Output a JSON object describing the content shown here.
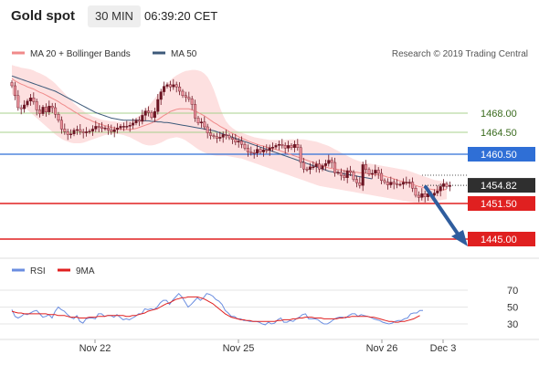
{
  "header": {
    "title": "Gold spot",
    "timeframe": "30 MIN",
    "time": "06:39:20 CET"
  },
  "legend": {
    "ma20_label": "MA 20 + Bollinger Bands",
    "ma50_label": "MA 50",
    "credit": "Research © 2019 Trading Central"
  },
  "colors": {
    "candle_up": "#6b1422",
    "candle_down": "#e8909a",
    "ma20": "#f08a8a",
    "bollinger_fill": "#fde0e0",
    "ma50": "#3d5a7a",
    "green_level": "#a8d08d",
    "blue_level": "#2f6fd6",
    "red_level": "#e02020",
    "current_price": "#2f2f2f",
    "arrow": "#2f5d9e",
    "rsi": "#6a8de0",
    "rsi_ma": "#e02020"
  },
  "chart_data": [
    {
      "type": "candlestick",
      "title": "Gold spot",
      "ylim": [
        1440,
        1480
      ],
      "x_tick_labels": [
        "Nov 22",
        "Nov 25",
        "Nov 26",
        "Dec 3"
      ],
      "levels": [
        {
          "value": 1468.0,
          "label": "1468.00",
          "style": "green-line"
        },
        {
          "value": 1464.5,
          "label": "1464.50",
          "style": "green-line"
        },
        {
          "value": 1460.5,
          "label": "1460.50",
          "style": "blue-box"
        },
        {
          "value": 1454.82,
          "label": "1454.82",
          "style": "current-price"
        },
        {
          "value": 1451.5,
          "label": "1451.50",
          "style": "red-box"
        },
        {
          "value": 1445.0,
          "label": "1445.00",
          "style": "red-box"
        }
      ],
      "closes": [
        1473.0,
        1471.2,
        1469.0,
        1468.8,
        1469.5,
        1470.2,
        1470.8,
        1470.1,
        1468.6,
        1467.9,
        1469.1,
        1468.2,
        1469.3,
        1469.0,
        1467.8,
        1466.7,
        1465.1,
        1464.6,
        1464.1,
        1464.2,
        1464.9,
        1465.0,
        1464.6,
        1464.4,
        1464.6,
        1464.7,
        1465.1,
        1465.6,
        1465.5,
        1465.2,
        1465.3,
        1464.9,
        1464.6,
        1465.0,
        1465.3,
        1465.6,
        1465.6,
        1465.6,
        1465.8,
        1466.2,
        1466.7,
        1466.5,
        1467.6,
        1468.4,
        1468.1,
        1467.2,
        1468.3,
        1470.5,
        1471.9,
        1472.9,
        1473.2,
        1472.8,
        1473.2,
        1472.8,
        1472.0,
        1471.2,
        1470.9,
        1470.6,
        1469.6,
        1467.1,
        1466.2,
        1466.4,
        1465.5,
        1464.4,
        1463.9,
        1463.7,
        1463.4,
        1463.6,
        1464.1,
        1463.9,
        1463.5,
        1463.2,
        1462.7,
        1462.9,
        1462.3,
        1461.6,
        1460.9,
        1460.8,
        1460.7,
        1461.4,
        1460.9,
        1461.3,
        1461.2,
        1461.7,
        1461.8,
        1462.1,
        1462.3,
        1462.1,
        1461.6,
        1462.1,
        1461.7,
        1462.3,
        1461.7,
        1459.0,
        1457.8,
        1457.7,
        1458.2,
        1458.2,
        1458.7,
        1457.8,
        1458.4,
        1458.8,
        1459.4,
        1459.0,
        1457.1,
        1457.2,
        1456.6,
        1456.2,
        1457.5,
        1457.2,
        1455.9,
        1455.3,
        1454.8,
        1458.6,
        1457.7,
        1456.9,
        1457.0,
        1457.6,
        1457.0,
        1455.7,
        1455.4,
        1454.9,
        1455.4,
        1455.1,
        1455.0,
        1455.0,
        1455.4,
        1455.4,
        1455.4,
        1454.3,
        1453.0,
        1452.6,
        1453.3,
        1452.7,
        1453.3,
        1453.0,
        1453.4,
        1453.8,
        1454.6,
        1455.1,
        1454.6,
        1454.8
      ],
      "ma20": [
        1474.3,
        1473.9,
        1473.6,
        1473.3,
        1473.1,
        1472.8,
        1472.6,
        1472.4,
        1472.1,
        1471.8,
        1471.6,
        1471.3,
        1471.0,
        1470.7,
        1470.4,
        1470.1,
        1469.7,
        1469.4,
        1469.0,
        1468.7,
        1468.3,
        1468.0,
        1467.6,
        1467.3,
        1467.0,
        1466.8,
        1466.5,
        1466.3,
        1466.1,
        1465.9,
        1465.7,
        1465.6,
        1465.4,
        1465.3,
        1465.2,
        1465.1,
        1465.0,
        1465.0,
        1465.0,
        1465.1,
        1465.2,
        1465.4,
        1465.6,
        1465.8,
        1466.0,
        1466.2,
        1466.5,
        1466.8,
        1467.2,
        1467.6,
        1467.9,
        1468.3,
        1468.5,
        1468.7,
        1468.8,
        1468.8,
        1468.8,
        1468.8,
        1468.6,
        1468.4,
        1468.1,
        1467.8,
        1467.5,
        1467.1,
        1466.7,
        1466.3,
        1466.0,
        1465.6,
        1465.3,
        1465.0,
        1464.6,
        1464.3,
        1464.0,
        1463.7,
        1463.4,
        1463.2,
        1462.9,
        1462.7,
        1462.5,
        1462.3,
        1462.1,
        1462.0,
        1461.8,
        1461.6,
        1461.5,
        1461.4,
        1461.2,
        1461.0,
        1460.8,
        1460.6,
        1460.4,
        1460.2,
        1460.0,
        1459.8,
        1459.6,
        1459.4,
        1459.2,
        1459.0,
        1458.8,
        1458.6,
        1458.4,
        1458.2,
        1458.0,
        1457.9,
        1457.8,
        1457.7,
        1457.6,
        1457.5,
        1457.4,
        1457.3,
        1457.2,
        1457.2,
        1457.1,
        1457.1,
        1457.0,
        1456.9,
        1456.8,
        1456.8,
        1456.7,
        1456.6,
        1456.5,
        1456.3,
        1456.2,
        1456.0,
        1455.8,
        1455.6,
        1455.5,
        1455.3,
        1455.2,
        1455.0,
        1454.8,
        1454.6,
        1454.5,
        1454.3,
        1454.2,
        1454.1,
        1454.0,
        1454.0,
        1454.0,
        1454.0,
        1454.1
      ],
      "bollinger_upper": [
        1476.8,
        1476.6,
        1476.5,
        1476.3,
        1476.2,
        1476.1,
        1476.0,
        1475.8,
        1475.5,
        1475.3,
        1475.0,
        1474.7,
        1474.3,
        1473.9,
        1473.4,
        1472.8,
        1472.2,
        1471.6,
        1471.0,
        1470.4,
        1469.8,
        1469.3,
        1468.8,
        1468.4,
        1468.0,
        1467.7,
        1467.4,
        1467.2,
        1467.0,
        1466.8,
        1466.7,
        1466.6,
        1466.5,
        1466.5,
        1466.4,
        1466.4,
        1466.4,
        1466.5,
        1466.6,
        1466.8,
        1467.1,
        1467.5,
        1468.0,
        1468.6,
        1469.3,
        1470.0,
        1470.7,
        1471.4,
        1472.1,
        1472.8,
        1473.4,
        1474.0,
        1474.5,
        1474.9,
        1475.2,
        1475.5,
        1475.7,
        1475.8,
        1475.9,
        1475.9,
        1475.8,
        1475.6,
        1475.2,
        1474.6,
        1473.6,
        1472.3,
        1470.7,
        1469.0,
        1467.6,
        1466.5,
        1465.8,
        1465.3,
        1464.9,
        1464.6,
        1464.4,
        1464.2,
        1464.0,
        1463.8,
        1463.6,
        1463.5,
        1463.4,
        1463.3,
        1463.2,
        1463.1,
        1463.1,
        1463.1,
        1463.1,
        1463.1,
        1463.1,
        1463.2,
        1463.2,
        1463.2,
        1463.2,
        1463.2,
        1463.2,
        1463.1,
        1463.0,
        1462.9,
        1462.8,
        1462.6,
        1462.4,
        1462.2,
        1462.0,
        1461.7,
        1461.4,
        1461.1,
        1460.8,
        1460.5,
        1460.2,
        1459.9,
        1459.6,
        1459.4,
        1459.2,
        1459.0,
        1458.9,
        1458.8,
        1458.7,
        1458.6,
        1458.5,
        1458.4,
        1458.3,
        1458.2,
        1458.1,
        1458.0,
        1457.9,
        1457.8,
        1457.7,
        1457.6,
        1457.4,
        1457.2,
        1457.0,
        1456.8,
        1456.6,
        1456.4,
        1456.2,
        1456.0,
        1455.8,
        1455.7,
        1455.6,
        1455.5,
        1455.4
      ],
      "bollinger_lower": [
        1471.5,
        1470.9,
        1470.3,
        1469.7,
        1469.1,
        1468.6,
        1468.1,
        1467.6,
        1467.1,
        1466.6,
        1466.1,
        1465.6,
        1465.1,
        1464.6,
        1464.1,
        1463.7,
        1463.3,
        1463.0,
        1462.8,
        1462.6,
        1462.5,
        1462.5,
        1462.5,
        1462.6,
        1462.8,
        1463.0,
        1463.2,
        1463.4,
        1463.6,
        1463.8,
        1464.0,
        1464.1,
        1464.2,
        1464.2,
        1464.2,
        1464.1,
        1464.0,
        1463.8,
        1463.6,
        1463.3,
        1463.0,
        1462.7,
        1462.4,
        1462.2,
        1462.1,
        1462.1,
        1462.2,
        1462.4,
        1462.6,
        1462.9,
        1463.2,
        1463.4,
        1463.5,
        1463.6,
        1463.5,
        1463.3,
        1463.0,
        1462.6,
        1462.2,
        1461.8,
        1461.4,
        1461.1,
        1460.8,
        1460.6,
        1460.4,
        1460.3,
        1460.2,
        1460.2,
        1460.2,
        1460.2,
        1460.1,
        1460.0,
        1459.9,
        1459.8,
        1459.7,
        1459.5,
        1459.3,
        1459.1,
        1458.9,
        1458.7,
        1458.5,
        1458.3,
        1458.1,
        1457.9,
        1457.7,
        1457.5,
        1457.3,
        1457.1,
        1456.9,
        1456.7,
        1456.5,
        1456.3,
        1456.1,
        1455.9,
        1455.7,
        1455.5,
        1455.3,
        1455.1,
        1454.9,
        1454.7,
        1454.6,
        1454.5,
        1454.4,
        1454.3,
        1454.2,
        1454.1,
        1454.0,
        1453.9,
        1453.8,
        1453.7,
        1453.6,
        1453.5,
        1453.4,
        1453.3,
        1453.2,
        1453.1,
        1453.0,
        1452.9,
        1452.8,
        1452.7,
        1452.6,
        1452.5,
        1452.4,
        1452.3,
        1452.2,
        1452.1,
        1452.0,
        1451.9,
        1451.8,
        1451.7,
        1451.6,
        1451.6,
        1451.6,
        1451.6,
        1451.7,
        1451.8,
        1451.9,
        1452.0,
        1452.1,
        1452.2,
        1452.3
      ],
      "ma50": [
        1474.8,
        1474.6,
        1474.4,
        1474.2,
        1474.0,
        1473.8,
        1473.6,
        1473.4,
        1473.2,
        1473.0,
        1472.8,
        1472.6,
        1472.4,
        1472.2,
        1472.0,
        1471.7,
        1471.4,
        1471.1,
        1470.8,
        1470.5,
        1470.2,
        1469.9,
        1469.6,
        1469.3,
        1469.0,
        1468.7,
        1468.4,
        1468.1,
        1467.9,
        1467.7,
        1467.5,
        1467.3,
        1467.1,
        1467.0,
        1466.9,
        1466.8,
        1466.7,
        1466.7,
        1466.7,
        1466.7,
        1466.7,
        1466.7,
        1466.6,
        1466.6,
        1466.6,
        1466.5,
        1466.5,
        1466.4,
        1466.4,
        1466.3,
        1466.3,
        1466.2,
        1466.1,
        1466.0,
        1465.9,
        1465.8,
        1465.7,
        1465.6,
        1465.5,
        1465.4,
        1465.3,
        1465.2,
        1465.1,
        1465.0,
        1464.9,
        1464.8,
        1464.6,
        1464.4,
        1464.2,
        1464.0,
        1463.8,
        1463.6,
        1463.4,
        1463.2,
        1463.0,
        1462.8,
        1462.6,
        1462.4,
        1462.2,
        1462.0,
        1461.8,
        1461.6,
        1461.4,
        1461.2,
        1461.0,
        1460.8,
        1460.6,
        1460.4,
        1460.2,
        1460.0,
        1459.8,
        1459.6,
        1459.4,
        1459.2,
        1459.0,
        1458.8,
        1458.6,
        1458.4,
        1458.2,
        1458.0,
        1457.8,
        1457.6,
        1457.4,
        1457.3,
        1457.2,
        1457.1,
        1457.0,
        1456.9,
        1456.8,
        1456.7,
        1456.6,
        1456.5,
        1456.4,
        1456.3,
        1456.2,
        1456.1,
        1456.0
      ]
    },
    {
      "type": "line",
      "series": [
        {
          "name": "RSI",
          "values": [
            47,
            39,
            37,
            39,
            42,
            41,
            43,
            45,
            46,
            42,
            38,
            39,
            41,
            37,
            45,
            50,
            47,
            45,
            41,
            38,
            36,
            40,
            33,
            31,
            36,
            37,
            37,
            36,
            42,
            42,
            39,
            40,
            40,
            38,
            41,
            38,
            35,
            36,
            35,
            37,
            39,
            42,
            42,
            48,
            47,
            48,
            47,
            50,
            55,
            58,
            58,
            53,
            58,
            62,
            66,
            62,
            56,
            50,
            53,
            57,
            61,
            58,
            61,
            66,
            65,
            63,
            59,
            57,
            53,
            46,
            43,
            39,
            39,
            36,
            36,
            34,
            34,
            33,
            33,
            33,
            32,
            30,
            29,
            32,
            30,
            31,
            35,
            37,
            32,
            32,
            34,
            33,
            36,
            38,
            41,
            42,
            36,
            36,
            36,
            35,
            32,
            30,
            30,
            32,
            35,
            37,
            38,
            38,
            37,
            40,
            42,
            42,
            39,
            41,
            40,
            39,
            38,
            36,
            35,
            34,
            32,
            31,
            30,
            31,
            33,
            34,
            34,
            36,
            37,
            42,
            43,
            43,
            46,
            46
          ]
        },
        {
          "name": "9MA",
          "values": [
            45,
            44,
            43,
            43,
            42,
            42,
            42,
            42,
            42,
            42,
            42,
            42,
            41,
            41,
            41,
            40,
            40,
            40,
            39,
            38,
            38,
            38,
            37,
            37,
            37,
            38,
            38,
            38,
            39,
            39,
            39,
            40,
            40,
            40,
            40,
            40,
            40,
            39,
            39,
            40,
            40,
            41,
            42,
            43,
            45,
            46,
            47,
            48,
            50,
            52,
            54,
            55,
            57,
            59,
            60,
            61,
            61,
            62,
            62,
            62,
            62,
            61,
            60,
            58,
            56,
            54,
            51,
            48,
            45,
            42,
            40,
            38,
            37,
            36,
            35,
            35,
            34,
            34,
            33,
            33,
            33,
            33,
            33,
            33,
            33,
            33,
            34,
            34,
            35,
            35,
            35,
            36,
            36,
            37,
            37,
            38,
            38,
            38,
            37,
            37,
            37,
            36,
            36,
            36,
            36,
            36,
            37,
            37,
            38,
            38,
            39,
            39,
            39,
            39,
            39,
            39,
            38,
            38,
            37,
            36,
            35,
            34,
            33,
            33,
            32,
            32,
            33,
            33,
            34,
            35,
            36,
            38,
            40
          ]
        }
      ],
      "ylim": [
        20,
        80
      ],
      "y_ticks": [
        30,
        50,
        70
      ],
      "x_tick_labels": [
        "Nov 22",
        "Nov 25",
        "Nov 26",
        "Dec 3"
      ]
    }
  ]
}
